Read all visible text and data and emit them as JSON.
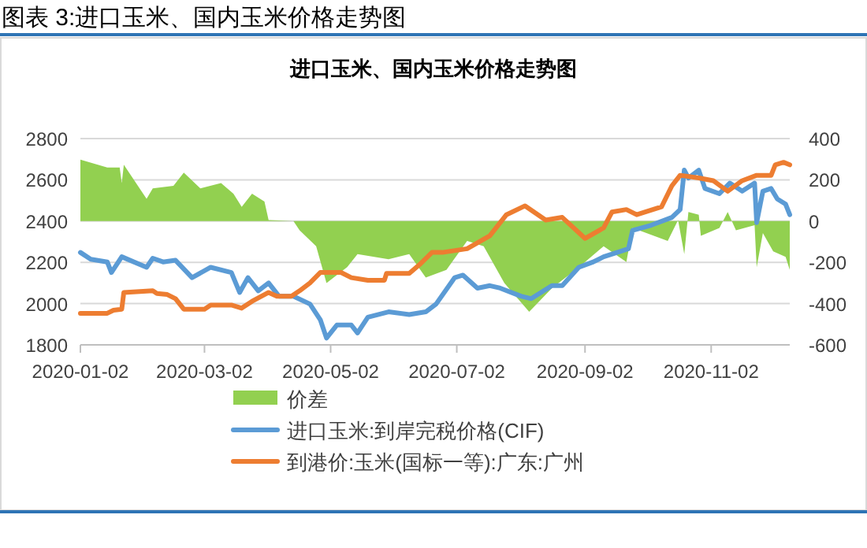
{
  "chart_data": {
    "type": "line",
    "title": "图表 3:进口玉米、国内玉米价格走势图",
    "subtitle": "进口玉米、国内玉米价格走势图",
    "xlim": [
      "2020-01-02",
      "2020-12-10"
    ],
    "xticks": [
      "2020-01-02",
      "2020-03-02",
      "2020-05-02",
      "2020-07-02",
      "2020-09-02",
      "2020-11-02"
    ],
    "ylim": [
      1800,
      2800
    ],
    "yticks": [
      1800,
      2000,
      2200,
      2400,
      2600,
      2800
    ],
    "y2lim": [
      -600,
      400
    ],
    "y2ticks": [
      -600,
      -400,
      -200,
      0,
      200,
      400
    ],
    "grid": "y",
    "legend": "bottom",
    "series": [
      {
        "name": "价差",
        "type": "area",
        "axis": "y2",
        "color": "#92d050",
        "x": [
          "2020-01-02",
          "2020-01-15",
          "2020-01-21",
          "2020-01-22",
          "2020-01-23",
          "2020-02-03",
          "2020-02-06",
          "2020-02-16",
          "2020-02-21",
          "2020-02-29",
          "2020-03-10",
          "2020-03-16",
          "2020-03-20",
          "2020-03-25",
          "2020-03-31",
          "2020-04-02",
          "2020-04-14",
          "2020-04-17",
          "2020-04-25",
          "2020-04-30",
          "2020-05-10",
          "2020-05-15",
          "2020-05-30",
          "2020-06-09",
          "2020-06-17",
          "2020-06-27",
          "2020-07-07",
          "2020-07-15",
          "2020-07-25",
          "2020-08-06",
          "2020-08-17",
          "2020-08-30",
          "2020-09-11",
          "2020-09-22",
          "2020-09-25",
          "2020-10-12",
          "2020-10-17",
          "2020-10-20",
          "2020-10-22",
          "2020-10-27",
          "2020-10-28",
          "2020-11-06",
          "2020-11-10",
          "2020-11-14",
          "2020-11-23",
          "2020-11-24",
          "2020-11-27",
          "2020-12-02",
          "2020-12-08",
          "2020-12-10"
        ],
        "values": [
          298,
          260,
          260,
          184,
          273,
          108,
          159,
          171,
          235,
          159,
          184,
          133,
          69,
          133,
          95,
          5,
          0,
          -45,
          -122,
          -300,
          -223,
          -160,
          -185,
          -160,
          -274,
          -236,
          -96,
          -122,
          -300,
          -440,
          -325,
          -224,
          -122,
          -198,
          -33,
          -96,
          5,
          -160,
          44,
          31,
          -71,
          -33,
          44,
          -45,
          -20,
          -224,
          -58,
          -147,
          -173,
          -236
        ]
      },
      {
        "name": "进口玉米:到岸完税价格(CIF)",
        "color": "#5b9bd5",
        "x": [
          "2020-01-02",
          "2020-01-07",
          "2020-01-15",
          "2020-01-17",
          "2020-01-22",
          "2020-02-03",
          "2020-02-06",
          "2020-02-11",
          "2020-02-17",
          "2020-02-25",
          "2020-03-05",
          "2020-03-15",
          "2020-03-19",
          "2020-03-23",
          "2020-03-28",
          "2020-04-02",
          "2020-04-07",
          "2020-04-14",
          "2020-04-22",
          "2020-04-27",
          "2020-04-30",
          "2020-05-05",
          "2020-05-12",
          "2020-05-15",
          "2020-05-20",
          "2020-05-30",
          "2020-06-09",
          "2020-06-17",
          "2020-06-22",
          "2020-07-01",
          "2020-07-05",
          "2020-07-12",
          "2020-07-18",
          "2020-07-23",
          "2020-08-02",
          "2020-08-07",
          "2020-08-17",
          "2020-08-22",
          "2020-08-30",
          "2020-09-06",
          "2020-09-11",
          "2020-09-19",
          "2020-09-23",
          "2020-09-25",
          "2020-10-04",
          "2020-10-14",
          "2020-10-18",
          "2020-10-20",
          "2020-10-22",
          "2020-10-27",
          "2020-10-30",
          "2020-11-06",
          "2020-11-11",
          "2020-11-17",
          "2020-11-23",
          "2020-11-24",
          "2020-11-27",
          "2020-12-01",
          "2020-12-04",
          "2020-12-08",
          "2020-12-10"
        ],
        "values": [
          2248,
          2215,
          2202,
          2151,
          2227,
          2176,
          2220,
          2202,
          2210,
          2126,
          2176,
          2151,
          2054,
          2126,
          2062,
          2100,
          2036,
          2036,
          1998,
          1922,
          1833,
          1896,
          1896,
          1858,
          1934,
          1960,
          1947,
          1960,
          1998,
          2126,
          2138,
          2075,
          2087,
          2075,
          2036,
          2024,
          2087,
          2087,
          2176,
          2202,
          2227,
          2253,
          2266,
          2355,
          2380,
          2418,
          2456,
          2647,
          2609,
          2647,
          2558,
          2533,
          2584,
          2545,
          2584,
          2393,
          2545,
          2558,
          2507,
          2482,
          2431
        ]
      },
      {
        "name": "到港价:玉米(国标一等):广东:广州",
        "color": "#ed7d31",
        "x": [
          "2020-01-02",
          "2020-01-15",
          "2020-01-18",
          "2020-01-22",
          "2020-01-23",
          "2020-02-06",
          "2020-02-08",
          "2020-02-13",
          "2020-02-17",
          "2020-02-21",
          "2020-03-02",
          "2020-03-05",
          "2020-03-15",
          "2020-03-20",
          "2020-03-25",
          "2020-04-02",
          "2020-04-06",
          "2020-04-13",
          "2020-04-17",
          "2020-04-22",
          "2020-04-27",
          "2020-05-07",
          "2020-05-12",
          "2020-05-20",
          "2020-05-28",
          "2020-05-29",
          "2020-06-09",
          "2020-06-14",
          "2020-06-20",
          "2020-06-25",
          "2020-07-07",
          "2020-07-18",
          "2020-07-26",
          "2020-08-04",
          "2020-08-14",
          "2020-08-22",
          "2020-09-02",
          "2020-09-11",
          "2020-09-15",
          "2020-09-22",
          "2020-09-27",
          "2020-10-09",
          "2020-10-14",
          "2020-10-18",
          "2020-10-27",
          "2020-11-03",
          "2020-11-10",
          "2020-11-17",
          "2020-11-24",
          "2020-12-01",
          "2020-12-03",
          "2020-12-07",
          "2020-12-10"
        ],
        "values": [
          1953,
          1953,
          1968,
          1973,
          2054,
          2062,
          2049,
          2044,
          2024,
          1973,
          1973,
          1993,
          1993,
          1978,
          2011,
          2054,
          2036,
          2036,
          2062,
          2100,
          2151,
          2151,
          2126,
          2113,
          2113,
          2146,
          2146,
          2189,
          2248,
          2248,
          2266,
          2329,
          2431,
          2474,
          2405,
          2418,
          2316,
          2367,
          2444,
          2456,
          2431,
          2469,
          2571,
          2622,
          2609,
          2596,
          2545,
          2596,
          2622,
          2622,
          2673,
          2685,
          2673
        ]
      }
    ]
  }
}
